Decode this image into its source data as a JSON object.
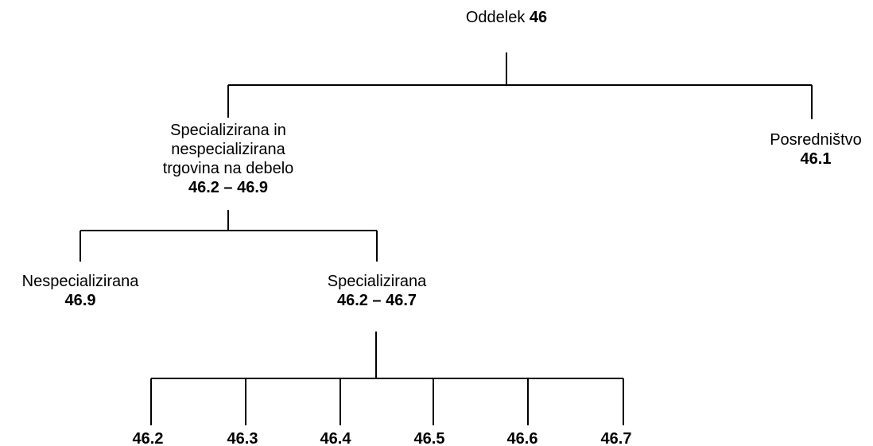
{
  "root": {
    "label": "Oddelek",
    "code": "46"
  },
  "wholesale": {
    "line1": "Specializirana in",
    "line2": "nespecializirana",
    "line3": "trgovina na debelo",
    "code": "46.2 – 46.9"
  },
  "brokerage": {
    "label": "Posredništvo",
    "code": "46.1"
  },
  "non_specialized": {
    "label": "Nespecializirana",
    "code": "46.9"
  },
  "specialized": {
    "label": "Specializirana",
    "code": "46.2 – 46.7"
  },
  "leaves": [
    "46.2",
    "46.3",
    "46.4",
    "46.5",
    "46.6",
    "46.7"
  ],
  "colors": {
    "line": "#000000",
    "text": "#000000",
    "background": "#ffffff"
  }
}
